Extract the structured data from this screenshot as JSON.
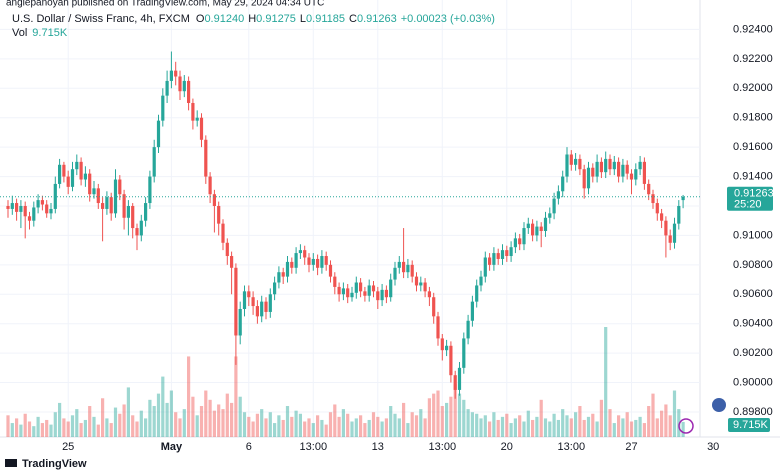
{
  "chart_data": {
    "type": "candlestick",
    "published": "anglepanoyan published on TradingView.com, May 29, 2024 04:34 UTC",
    "header": {
      "symbol": "U.S. Dollar / Swiss Franc, 4h, FXCM",
      "ohlc": [
        {
          "label": "O",
          "value": "0.91240"
        },
        {
          "label": "H",
          "value": "0.91275"
        },
        {
          "label": "L",
          "value": "0.91185"
        },
        {
          "label": "C",
          "value": "0.91263"
        }
      ],
      "change": "+0.00023 (+0.03%)",
      "volume_label": "Vol",
      "volume": "9.715K",
      "countdown": "25:20"
    },
    "footer": "TradingView",
    "up_color": "#26a69a",
    "down_color": "#ef5350",
    "ylim": [
      0.8963,
      0.926
    ],
    "yticks": [
      {
        "value": 0.898,
        "label": "0.89800"
      },
      {
        "value": 0.9,
        "label": "0.90000"
      },
      {
        "value": 0.902,
        "label": "0.90200"
      },
      {
        "value": 0.904,
        "label": "0.90400"
      },
      {
        "value": 0.906,
        "label": "0.90600"
      },
      {
        "value": 0.908,
        "label": "0.90800"
      },
      {
        "value": 0.91,
        "label": "0.91000"
      },
      {
        "value": 0.912,
        "label": "0.91200"
      },
      {
        "value": 0.914,
        "label": "0.91400"
      },
      {
        "value": 0.916,
        "label": "0.91600"
      },
      {
        "value": 0.918,
        "label": "0.91800"
      },
      {
        "value": 0.92,
        "label": "0.92000"
      },
      {
        "value": 0.922,
        "label": "0.92200"
      },
      {
        "value": 0.924,
        "label": "0.92400"
      }
    ],
    "grid": true,
    "categories": [
      null,
      null,
      null,
      null,
      null,
      null,
      null,
      null,
      null,
      null,
      null,
      null,
      null,
      null,
      "25",
      null,
      null,
      null,
      null,
      null,
      null,
      null,
      null,
      null,
      null,
      null,
      null,
      null,
      null,
      null,
      null,
      null,
      null,
      null,
      null,
      null,
      null,
      null,
      "May",
      null,
      null,
      null,
      null,
      null,
      null,
      null,
      null,
      null,
      null,
      null,
      null,
      null,
      null,
      null,
      null,
      null,
      "6",
      null,
      null,
      null,
      null,
      null,
      null,
      null,
      null,
      null,
      null,
      null,
      null,
      null,
      null,
      "13:00",
      null,
      null,
      null,
      null,
      null,
      null,
      null,
      null,
      null,
      null,
      null,
      null,
      null,
      null,
      "13",
      null,
      null,
      null,
      null,
      null,
      null,
      null,
      null,
      null,
      null,
      null,
      null,
      null,
      null,
      "13:00",
      null,
      null,
      null,
      null,
      null,
      null,
      null,
      null,
      null,
      null,
      null,
      null,
      null,
      null,
      "20",
      null,
      null,
      null,
      null,
      null,
      null,
      null,
      null,
      null,
      null,
      null,
      null,
      null,
      null,
      "13:00",
      null,
      null,
      null,
      null,
      null,
      null,
      null,
      null,
      null,
      null,
      null,
      null,
      null,
      "27",
      null,
      null,
      null,
      null,
      null,
      null,
      null,
      null,
      null,
      null,
      null,
      null,
      null,
      null,
      null,
      null,
      null,
      null,
      "30"
    ],
    "open": [
      0.912,
      0.9118,
      0.9122,
      0.9116,
      0.912,
      0.9113,
      0.911,
      0.9119,
      0.9124,
      0.9121,
      0.9115,
      0.9118,
      0.9135,
      0.9148,
      0.914,
      0.9133,
      0.9145,
      0.915,
      0.9138,
      0.9142,
      0.9128,
      0.9132,
      0.9122,
      0.9118,
      0.9126,
      0.9115,
      0.9138,
      0.9128,
      0.9112,
      0.912,
      0.9105,
      0.91,
      0.911,
      0.9122,
      0.914,
      0.916,
      0.9178,
      0.9195,
      0.9205,
      0.9212,
      0.9208,
      0.9198,
      0.9205,
      0.919,
      0.9178,
      0.918,
      0.9165,
      0.914,
      0.9128,
      0.912,
      0.9108,
      0.9095,
      0.9086,
      0.9078,
      0.9032,
      0.905,
      0.9062,
      0.9058,
      0.9052,
      0.9045,
      0.9055,
      0.9048,
      0.906,
      0.9068,
      0.9075,
      0.9072,
      0.9082,
      0.9078,
      0.9088,
      0.909,
      0.9085,
      0.908,
      0.9084,
      0.9078,
      0.9086,
      0.908,
      0.9072,
      0.9065,
      0.906,
      0.9064,
      0.9058,
      0.9061,
      0.9068,
      0.9062,
      0.9059,
      0.9066,
      0.9062,
      0.9056,
      0.9063,
      0.9058,
      0.907,
      0.9078,
      0.9082,
      0.9075,
      0.908,
      0.9072,
      0.9066,
      0.9068,
      0.9062,
      0.9058,
      0.9045,
      0.903,
      0.9022,
      0.9025,
      0.9005,
      0.8995,
      0.901,
      0.903,
      0.9042,
      0.9055,
      0.9066,
      0.9072,
      0.9085,
      0.908,
      0.9088,
      0.9084,
      0.909,
      0.9086,
      0.9092,
      0.9098,
      0.9094,
      0.9105,
      0.9108,
      0.91,
      0.9106,
      0.9103,
      0.9112,
      0.9115,
      0.9125,
      0.913,
      0.914,
      0.9155,
      0.9148,
      0.9152,
      0.9145,
      0.9132,
      0.9146,
      0.914,
      0.915,
      0.9143,
      0.9152,
      0.9145,
      0.915,
      0.914,
      0.9148,
      0.9142,
      0.9138,
      0.9145,
      0.915,
      0.9135,
      0.9128,
      0.9122,
      0.9115,
      0.911,
      0.91,
      0.9095,
      0.9108,
      0.9124,
      null,
      null,
      null,
      null,
      null,
      null,
      null
    ],
    "high": [
      0.9124,
      0.9127,
      0.9125,
      0.9124,
      0.9123,
      0.9116,
      0.9123,
      0.9128,
      0.9127,
      0.9124,
      0.9122,
      0.914,
      0.9152,
      0.915,
      0.9144,
      0.915,
      0.9155,
      0.9153,
      0.9147,
      0.9145,
      0.9137,
      0.9135,
      0.9126,
      0.913,
      0.9129,
      0.9145,
      0.9141,
      0.9131,
      0.9124,
      0.9122,
      0.9108,
      0.9114,
      0.9126,
      0.9144,
      0.9165,
      0.9182,
      0.92,
      0.9212,
      0.9225,
      0.9218,
      0.9212,
      0.9209,
      0.9208,
      0.9193,
      0.9185,
      0.9183,
      0.9168,
      0.9143,
      0.9131,
      0.9123,
      0.9111,
      0.9098,
      0.9089,
      0.9081,
      0.9055,
      0.9066,
      0.9066,
      0.9062,
      0.9056,
      0.9059,
      0.9058,
      0.9064,
      0.9072,
      0.9079,
      0.9078,
      0.9086,
      0.9085,
      0.9092,
      0.9094,
      0.9093,
      0.9088,
      0.9088,
      0.9087,
      0.909,
      0.9089,
      0.9083,
      0.9075,
      0.9068,
      0.9068,
      0.9067,
      0.9065,
      0.9072,
      0.9071,
      0.9065,
      0.907,
      0.9069,
      0.9065,
      0.9067,
      0.9066,
      0.9074,
      0.9082,
      0.9086,
      0.9105,
      0.9084,
      0.9083,
      0.9075,
      0.9072,
      0.9071,
      0.9065,
      0.9061,
      0.9048,
      0.9033,
      0.9029,
      0.9028,
      0.9008,
      0.9014,
      0.9034,
      0.9046,
      0.9059,
      0.907,
      0.9076,
      0.9089,
      0.9088,
      0.9092,
      0.9091,
      0.9094,
      0.9093,
      0.9096,
      0.9102,
      0.9101,
      0.9109,
      0.9112,
      0.9111,
      0.911,
      0.9109,
      0.9116,
      0.9119,
      0.9129,
      0.9134,
      0.9144,
      0.916,
      0.9158,
      0.9156,
      0.9155,
      0.9148,
      0.915,
      0.9149,
      0.9155,
      0.9153,
      0.9157,
      0.9155,
      0.9154,
      0.9153,
      0.9152,
      0.9151,
      0.9145,
      0.9149,
      0.9154,
      0.9153,
      0.9138,
      0.9131,
      0.9125,
      0.9118,
      0.9113,
      0.9104,
      0.9112,
      0.9124,
      0.91275,
      null,
      null,
      null,
      null,
      null,
      null,
      null
    ],
    "low": [
      0.9112,
      0.9114,
      0.911,
      0.9105,
      0.9098,
      0.9104,
      0.9106,
      0.9115,
      0.9117,
      0.9112,
      0.9111,
      0.9115,
      0.9132,
      0.9136,
      0.9128,
      0.913,
      0.9141,
      0.9134,
      0.9133,
      0.9123,
      0.9125,
      0.9118,
      0.9096,
      0.9114,
      0.911,
      0.9112,
      0.9124,
      0.9104,
      0.91,
      0.9098,
      0.909,
      0.9096,
      0.9106,
      0.9118,
      0.9136,
      0.9156,
      0.9174,
      0.919,
      0.92,
      0.9202,
      0.9192,
      0.9194,
      0.9185,
      0.9172,
      0.9174,
      0.916,
      0.9135,
      0.9122,
      0.9102,
      0.91,
      0.909,
      0.908,
      0.906,
      0.9012,
      0.9026,
      0.9045,
      0.9052,
      0.9046,
      0.904,
      0.9041,
      0.9043,
      0.9044,
      0.9056,
      0.9064,
      0.9067,
      0.9068,
      0.9074,
      0.9074,
      0.9084,
      0.908,
      0.9075,
      0.9076,
      0.9073,
      0.9074,
      0.9076,
      0.9068,
      0.906,
      0.9055,
      0.9056,
      0.9054,
      0.9055,
      0.9057,
      0.9058,
      0.9055,
      0.9055,
      0.9058,
      0.905,
      0.9052,
      0.9054,
      0.9055,
      0.9066,
      0.9074,
      0.9071,
      0.9071,
      0.9068,
      0.9062,
      0.9062,
      0.9058,
      0.9052,
      0.904,
      0.9025,
      0.9015,
      0.9018,
      0.9,
      0.8989,
      0.8991,
      0.9006,
      0.9026,
      0.9038,
      0.9051,
      0.9062,
      0.9068,
      0.9076,
      0.9076,
      0.908,
      0.908,
      0.9082,
      0.9082,
      0.9088,
      0.909,
      0.909,
      0.9101,
      0.9096,
      0.9096,
      0.9092,
      0.9099,
      0.9108,
      0.9111,
      0.9121,
      0.9126,
      0.9136,
      0.9144,
      0.9144,
      0.9141,
      0.9125,
      0.9128,
      0.9136,
      0.9136,
      0.9139,
      0.9139,
      0.9141,
      0.9141,
      0.9136,
      0.9136,
      0.9138,
      0.9128,
      0.9134,
      0.9141,
      0.9131,
      0.9124,
      0.9118,
      0.911,
      0.9105,
      0.9085,
      0.909,
      0.9091,
      0.9104,
      0.91185,
      null,
      null,
      null,
      null,
      null,
      null,
      null
    ],
    "close": [
      0.9118,
      0.9122,
      0.9116,
      0.912,
      0.9113,
      0.911,
      0.9119,
      0.9124,
      0.9121,
      0.9115,
      0.9118,
      0.9135,
      0.9148,
      0.914,
      0.9133,
      0.9145,
      0.915,
      0.9138,
      0.9142,
      0.9128,
      0.9132,
      0.9122,
      0.9118,
      0.9126,
      0.9115,
      0.9138,
      0.9128,
      0.9112,
      0.912,
      0.9105,
      0.91,
      0.911,
      0.9122,
      0.914,
      0.916,
      0.9178,
      0.9195,
      0.9205,
      0.9212,
      0.9208,
      0.9198,
      0.9205,
      0.919,
      0.9178,
      0.918,
      0.9165,
      0.914,
      0.9128,
      0.912,
      0.9108,
      0.9095,
      0.9086,
      0.9078,
      0.9032,
      0.905,
      0.9062,
      0.9058,
      0.9052,
      0.9045,
      0.9055,
      0.9048,
      0.906,
      0.9068,
      0.9075,
      0.9072,
      0.9082,
      0.9078,
      0.9088,
      0.909,
      0.9085,
      0.908,
      0.9084,
      0.9078,
      0.9086,
      0.908,
      0.9072,
      0.9065,
      0.906,
      0.9064,
      0.9058,
      0.9061,
      0.9068,
      0.9062,
      0.9059,
      0.9066,
      0.9062,
      0.9056,
      0.9063,
      0.9058,
      0.907,
      0.9078,
      0.9082,
      0.9075,
      0.908,
      0.9072,
      0.9066,
      0.9068,
      0.9062,
      0.9058,
      0.9045,
      0.903,
      0.9022,
      0.9025,
      0.9005,
      0.8995,
      0.901,
      0.903,
      0.9042,
      0.9055,
      0.9066,
      0.9072,
      0.9085,
      0.908,
      0.9088,
      0.9084,
      0.909,
      0.9086,
      0.9092,
      0.9098,
      0.9094,
      0.9105,
      0.9108,
      0.91,
      0.9106,
      0.9103,
      0.9112,
      0.9115,
      0.9125,
      0.913,
      0.914,
      0.9155,
      0.9148,
      0.9152,
      0.9145,
      0.9132,
      0.9146,
      0.914,
      0.915,
      0.9143,
      0.9152,
      0.9145,
      0.915,
      0.914,
      0.9148,
      0.9142,
      0.9138,
      0.9145,
      0.915,
      0.9135,
      0.9128,
      0.9122,
      0.9115,
      0.911,
      0.91,
      0.9095,
      0.9108,
      0.912,
      0.91263,
      null,
      null,
      null,
      null,
      null,
      null,
      null
    ],
    "volume": [
      14000,
      9000,
      12000,
      8000,
      15000,
      10000,
      7000,
      13000,
      9000,
      11000,
      8000,
      16000,
      22000,
      12000,
      10000,
      14000,
      18000,
      9000,
      11000,
      20000,
      13000,
      8000,
      25000,
      12000,
      9000,
      19000,
      15000,
      21000,
      32000,
      14000,
      10000,
      17000,
      12000,
      24000,
      20000,
      28000,
      39000,
      22000,
      30000,
      16000,
      12000,
      18000,
      52000,
      26000,
      14000,
      20000,
      30000,
      24000,
      17000,
      21000,
      18000,
      28000,
      22000,
      52000,
      26000,
      16000,
      13000,
      10000,
      15000,
      18000,
      12000,
      16000,
      9000,
      14000,
      11000,
      20000,
      13000,
      17000,
      15000,
      10000,
      12000,
      9000,
      14000,
      11000,
      8000,
      16000,
      21000,
      13000,
      18000,
      15000,
      10000,
      12000,
      14000,
      9000,
      11000,
      16000,
      13000,
      10000,
      12000,
      20000,
      15000,
      12000,
      22000,
      9000,
      16000,
      14000,
      18000,
      12000,
      25000,
      28000,
      30000,
      20000,
      22000,
      26000,
      34000,
      28000,
      24000,
      18000,
      16000,
      15000,
      12000,
      14000,
      10000,
      16000,
      11000,
      13000,
      15000,
      9000,
      12000,
      14000,
      10000,
      17000,
      11000,
      13000,
      24000,
      12000,
      10000,
      15000,
      11000,
      18000,
      14000,
      12000,
      16000,
      20000,
      11000,
      13000,
      15000,
      10000,
      24000,
      71000,
      18000,
      9000,
      14000,
      12000,
      16000,
      10000,
      11000,
      13000,
      9000,
      20000,
      28000,
      12000,
      17000,
      21000,
      14000,
      30000,
      18000,
      9715,
      null,
      null,
      null,
      null,
      null,
      null,
      null
    ]
  }
}
